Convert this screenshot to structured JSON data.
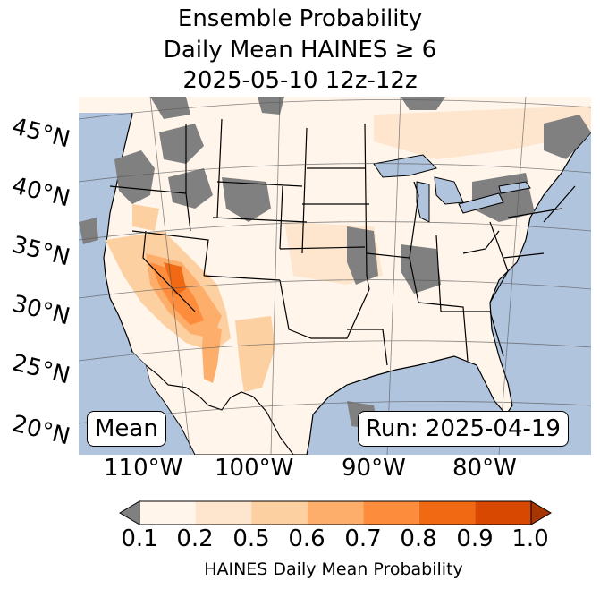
{
  "title": {
    "line1": "Ensemble Probability",
    "line2": "Daily Mean HAINES ≥ 6",
    "line3": "2025-05-10 12z-12z"
  },
  "labels": {
    "mean": "Mean",
    "run": "Run: 2025-04-19"
  },
  "lat_labels": [
    "45°N",
    "40°N",
    "35°N",
    "30°N",
    "25°N",
    "20°N"
  ],
  "lon_labels": [
    "110°W",
    "100°W",
    "90°W",
    "80°W"
  ],
  "colorbar": {
    "ticks": [
      "0.1",
      "0.2",
      "0.5",
      "0.6",
      "0.7",
      "0.8",
      "0.9",
      "1.0"
    ],
    "label": "HAINES Daily Mean Probability",
    "colors": [
      "#fff5eb",
      "#fee6ce",
      "#fdd0a2",
      "#fdae6b",
      "#fd8d3c",
      "#f16913",
      "#d94801"
    ],
    "under_color": "#808080",
    "over_color": "#a63603"
  },
  "colors": {
    "ocean": "#b0c4de",
    "land": "#fff5eb",
    "missing": "#808080",
    "border": "#000000",
    "lake": "#b0c4de"
  }
}
